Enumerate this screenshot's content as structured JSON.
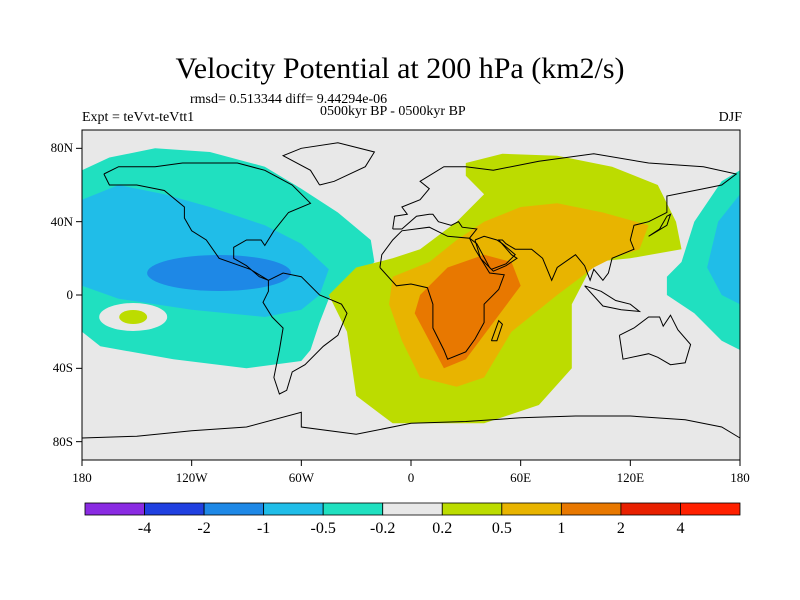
{
  "chart_data": {
    "type": "heatmap",
    "title": "Velocity Potential at 200 hPa (km2/s)",
    "rmsd_text": "rmsd= 0.513344 diff= 9.44294e-06",
    "experiment": "Expt = teVvt-teVtt1",
    "period": "0500kyr BP - 0500kyr BP",
    "season": "DJF",
    "xaxis": {
      "range": [
        -180,
        180
      ],
      "ticks": [
        {
          "value": -180,
          "label": "180"
        },
        {
          "value": -120,
          "label": "120W"
        },
        {
          "value": -60,
          "label": "60W"
        },
        {
          "value": 0,
          "label": "0"
        },
        {
          "value": 60,
          "label": "60E"
        },
        {
          "value": 120,
          "label": "120E"
        },
        {
          "value": 180,
          "label": "180"
        }
      ]
    },
    "yaxis": {
      "range": [
        -90,
        90
      ],
      "ticks": [
        {
          "value": 80,
          "label": "80N"
        },
        {
          "value": 40,
          "label": "40N"
        },
        {
          "value": 0,
          "label": "0"
        },
        {
          "value": -40,
          "label": "40S"
        },
        {
          "value": -80,
          "label": "80S"
        }
      ]
    },
    "colorbar": {
      "levels": [
        "-4",
        "-2",
        "-1",
        "-0.5",
        "-0.2",
        "0.2",
        "0.5",
        "1",
        "2",
        "4"
      ],
      "colors": [
        "#8a2be2",
        "#2040e0",
        "#1e88e6",
        "#20bde8",
        "#20e0c0",
        "#e8e8e8",
        "#bcdc00",
        "#e8b400",
        "#e87800",
        "#e82000",
        "#ff2000"
      ]
    },
    "regions": [
      {
        "name": "pacific-north-america-negative",
        "level": "-0.5 to -0.2",
        "color": "#20e0c0"
      },
      {
        "name": "central-america-minimum",
        "level": "-2 to -1",
        "color": "#1e88e6"
      },
      {
        "name": "africa-indian-ocean-positive",
        "level": "0.2 to 0.5",
        "color": "#bcdc00"
      },
      {
        "name": "africa-asia-maximum",
        "level": "0.5 to 1",
        "color": "#e8b400"
      },
      {
        "name": "east-africa-peak",
        "level": "1 to 2",
        "color": "#e87800"
      },
      {
        "name": "west-pacific-negative",
        "level": "-0.5 to -0.2",
        "color": "#20e0c0"
      }
    ]
  }
}
